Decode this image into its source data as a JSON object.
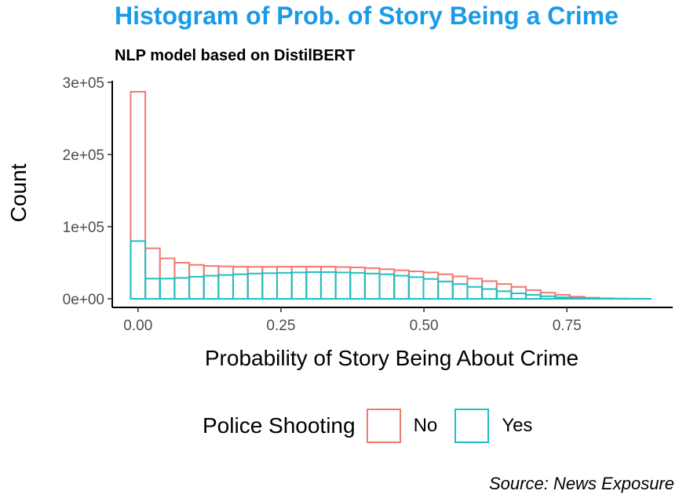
{
  "title": "Histogram of Prob. of Story Being a Crime",
  "subtitle": "NLP model based on DistilBERT",
  "caption": "Source: News Exposure",
  "colors": {
    "title": "#1a9be8",
    "No": "#f07a70",
    "Yes": "#1fbfc4"
  },
  "chart_data": {
    "type": "histogram",
    "xlabel": "Probability of Story Being About Crime",
    "ylabel": "Count",
    "xlim": [
      -0.045,
      0.935
    ],
    "ylim": [
      0,
      300000
    ],
    "x_ticks": [
      0.0,
      0.25,
      0.5,
      0.75
    ],
    "x_tick_labels": [
      "0.00",
      "0.25",
      "0.50",
      "0.75"
    ],
    "y_ticks": [
      0,
      100000,
      200000,
      300000
    ],
    "y_tick_labels": [
      "0e+00",
      "1e+05",
      "2e+05",
      "3e+05"
    ],
    "bin_edges": [
      -0.0128,
      0.0128,
      0.0384,
      0.064,
      0.0896,
      0.1152,
      0.1408,
      0.1664,
      0.192,
      0.2176,
      0.2432,
      0.2688,
      0.2944,
      0.32,
      0.3456,
      0.3712,
      0.3968,
      0.4224,
      0.448,
      0.4736,
      0.4992,
      0.5248,
      0.5504,
      0.576,
      0.6016,
      0.6272,
      0.6528,
      0.6784,
      0.704,
      0.7296,
      0.7552,
      0.7808,
      0.8064,
      0.832,
      0.8576,
      0.8832,
      0.8964
    ],
    "legend": {
      "title": "Police Shooting",
      "position": "bottom"
    },
    "grid": false,
    "series": [
      {
        "name": "No",
        "values": [
          287000,
          70000,
          56000,
          50000,
          47000,
          45500,
          45000,
          44500,
          44300,
          44300,
          44500,
          44600,
          44600,
          44500,
          44000,
          43500,
          42500,
          41000,
          39500,
          38000,
          36500,
          34000,
          31000,
          28000,
          24500,
          20500,
          16500,
          12000,
          8500,
          5500,
          3000,
          1500,
          700,
          300,
          100,
          40
        ]
      },
      {
        "name": "Yes",
        "values": [
          80000,
          28000,
          28000,
          29000,
          30500,
          32000,
          33000,
          34000,
          35000,
          35500,
          36000,
          36500,
          37000,
          37000,
          36500,
          36000,
          35000,
          34000,
          32000,
          30000,
          27500,
          24000,
          20500,
          16500,
          13500,
          10500,
          7500,
          5500,
          3500,
          2000,
          1000,
          500,
          200,
          80,
          30,
          10
        ]
      }
    ]
  }
}
